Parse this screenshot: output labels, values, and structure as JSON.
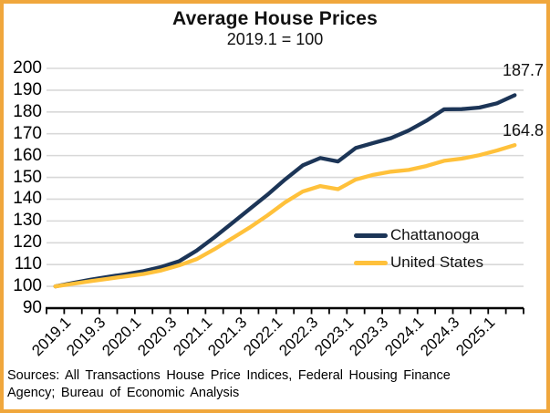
{
  "colors": {
    "chattanooga_line": "#1c3557",
    "us_line": "#ffc13b",
    "border": "#f0a73c",
    "grid": "#d8d8d8",
    "axis": "#000000"
  },
  "chart_data": {
    "type": "line",
    "title": "Average House Prices",
    "subtitle": "2019.1 = 100",
    "x": [
      "2019.1",
      "2019.2",
      "2019.3",
      "2019.4",
      "2020.1",
      "2020.2",
      "2020.3",
      "2020.4",
      "2021.1",
      "2021.2",
      "2021.3",
      "2021.4",
      "2022.1",
      "2022.2",
      "2022.3",
      "2022.4",
      "2023.1",
      "2023.2",
      "2023.3",
      "2023.4",
      "2024.1",
      "2024.2",
      "2024.3",
      "2024.4",
      "2025.1",
      "2025.2",
      "2025.3"
    ],
    "x_tick_labels": [
      "2019.1",
      "2019.3",
      "2020.1",
      "2020.3",
      "2021.1",
      "2021.3",
      "2022.1",
      "2022.3",
      "2023.1",
      "2023.3",
      "2024.1",
      "2024.3",
      "2025.1"
    ],
    "ylim": [
      90,
      200
    ],
    "ytick_step": 10,
    "grid": "horizontal-on",
    "legend_position": "inside-right",
    "series": [
      {
        "name": "Chattanooga",
        "color": "#1c3557",
        "end_label": "187.7",
        "values": [
          100.0,
          101.6,
          103.1,
          104.4,
          105.6,
          107.0,
          108.9,
          111.5,
          116.4,
          122.5,
          129.0,
          135.5,
          142.0,
          149.0,
          155.5,
          158.9,
          157.3,
          163.5,
          165.8,
          168.0,
          171.5,
          176.0,
          181.2,
          181.3,
          182.0,
          184.0,
          187.7
        ]
      },
      {
        "name": "United States",
        "color": "#ffc13b",
        "end_label": "164.8",
        "values": [
          100.0,
          101.2,
          102.4,
          103.5,
          104.6,
          105.7,
          107.3,
          109.6,
          112.5,
          117.0,
          122.0,
          127.0,
          132.5,
          138.5,
          143.5,
          146.0,
          144.6,
          149.0,
          151.2,
          152.6,
          153.4,
          155.2,
          157.6,
          158.6,
          160.2,
          162.3,
          164.8
        ]
      }
    ]
  },
  "footer": {
    "source_line1": "Sources: All Transactions House Price Indices, Federal Housing Finance",
    "source_line2": "Agency; Bureau of Economic Analysis"
  }
}
